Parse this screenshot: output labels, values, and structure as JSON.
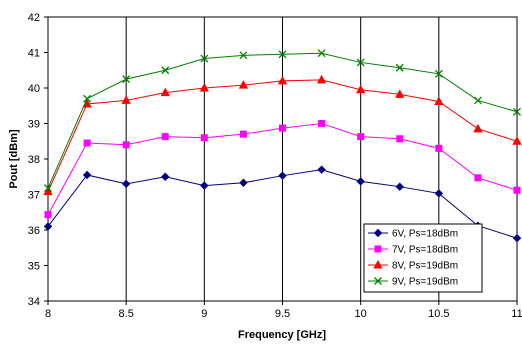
{
  "chart_data": {
    "type": "line",
    "xlabel": "Frequency [GHz]",
    "ylabel": "Pout [dBm]",
    "xlim": [
      8,
      11
    ],
    "ylim": [
      34,
      42
    ],
    "xticks": [
      8,
      8.5,
      9,
      9.5,
      10,
      10.5,
      11
    ],
    "xtick_labels": [
      "8",
      "8.5",
      "9",
      "9.5",
      "10",
      "10.5",
      "11"
    ],
    "yticks": [
      34,
      35,
      36,
      37,
      38,
      39,
      40,
      41,
      42
    ],
    "ytick_labels": [
      "34",
      "35",
      "36",
      "37",
      "38",
      "39",
      "40",
      "41",
      "42"
    ],
    "grid": "vertical",
    "legend_position": "lower-right",
    "x": [
      8,
      8.25,
      8.5,
      8.75,
      9,
      9.25,
      9.5,
      9.75,
      10,
      10.25,
      10.5,
      10.75,
      11
    ],
    "series": [
      {
        "name": "6V, Ps=18dBm",
        "color": "#000080",
        "marker": "diamond",
        "values": [
          36.1,
          37.55,
          37.3,
          37.5,
          37.25,
          37.33,
          37.53,
          37.7,
          37.37,
          37.22,
          37.03,
          36.12,
          35.77
        ]
      },
      {
        "name": "7V, Ps=18dBm",
        "color": "#FF00FF",
        "marker": "square",
        "values": [
          36.43,
          38.45,
          38.4,
          38.63,
          38.6,
          38.7,
          38.87,
          39.0,
          38.63,
          38.57,
          38.3,
          37.47,
          37.12
        ]
      },
      {
        "name": "8V, Ps=19dBm",
        "color": "#FF0000",
        "marker": "triangle",
        "values": [
          37.08,
          39.55,
          39.65,
          39.87,
          40.0,
          40.08,
          40.2,
          40.23,
          39.95,
          39.82,
          39.62,
          38.85,
          38.5
        ]
      },
      {
        "name": "9V, Ps=19dBm",
        "color": "#008000",
        "marker": "x",
        "values": [
          37.18,
          39.7,
          40.25,
          40.5,
          40.83,
          40.92,
          40.95,
          40.98,
          40.72,
          40.57,
          40.4,
          39.65,
          39.33
        ]
      }
    ]
  }
}
